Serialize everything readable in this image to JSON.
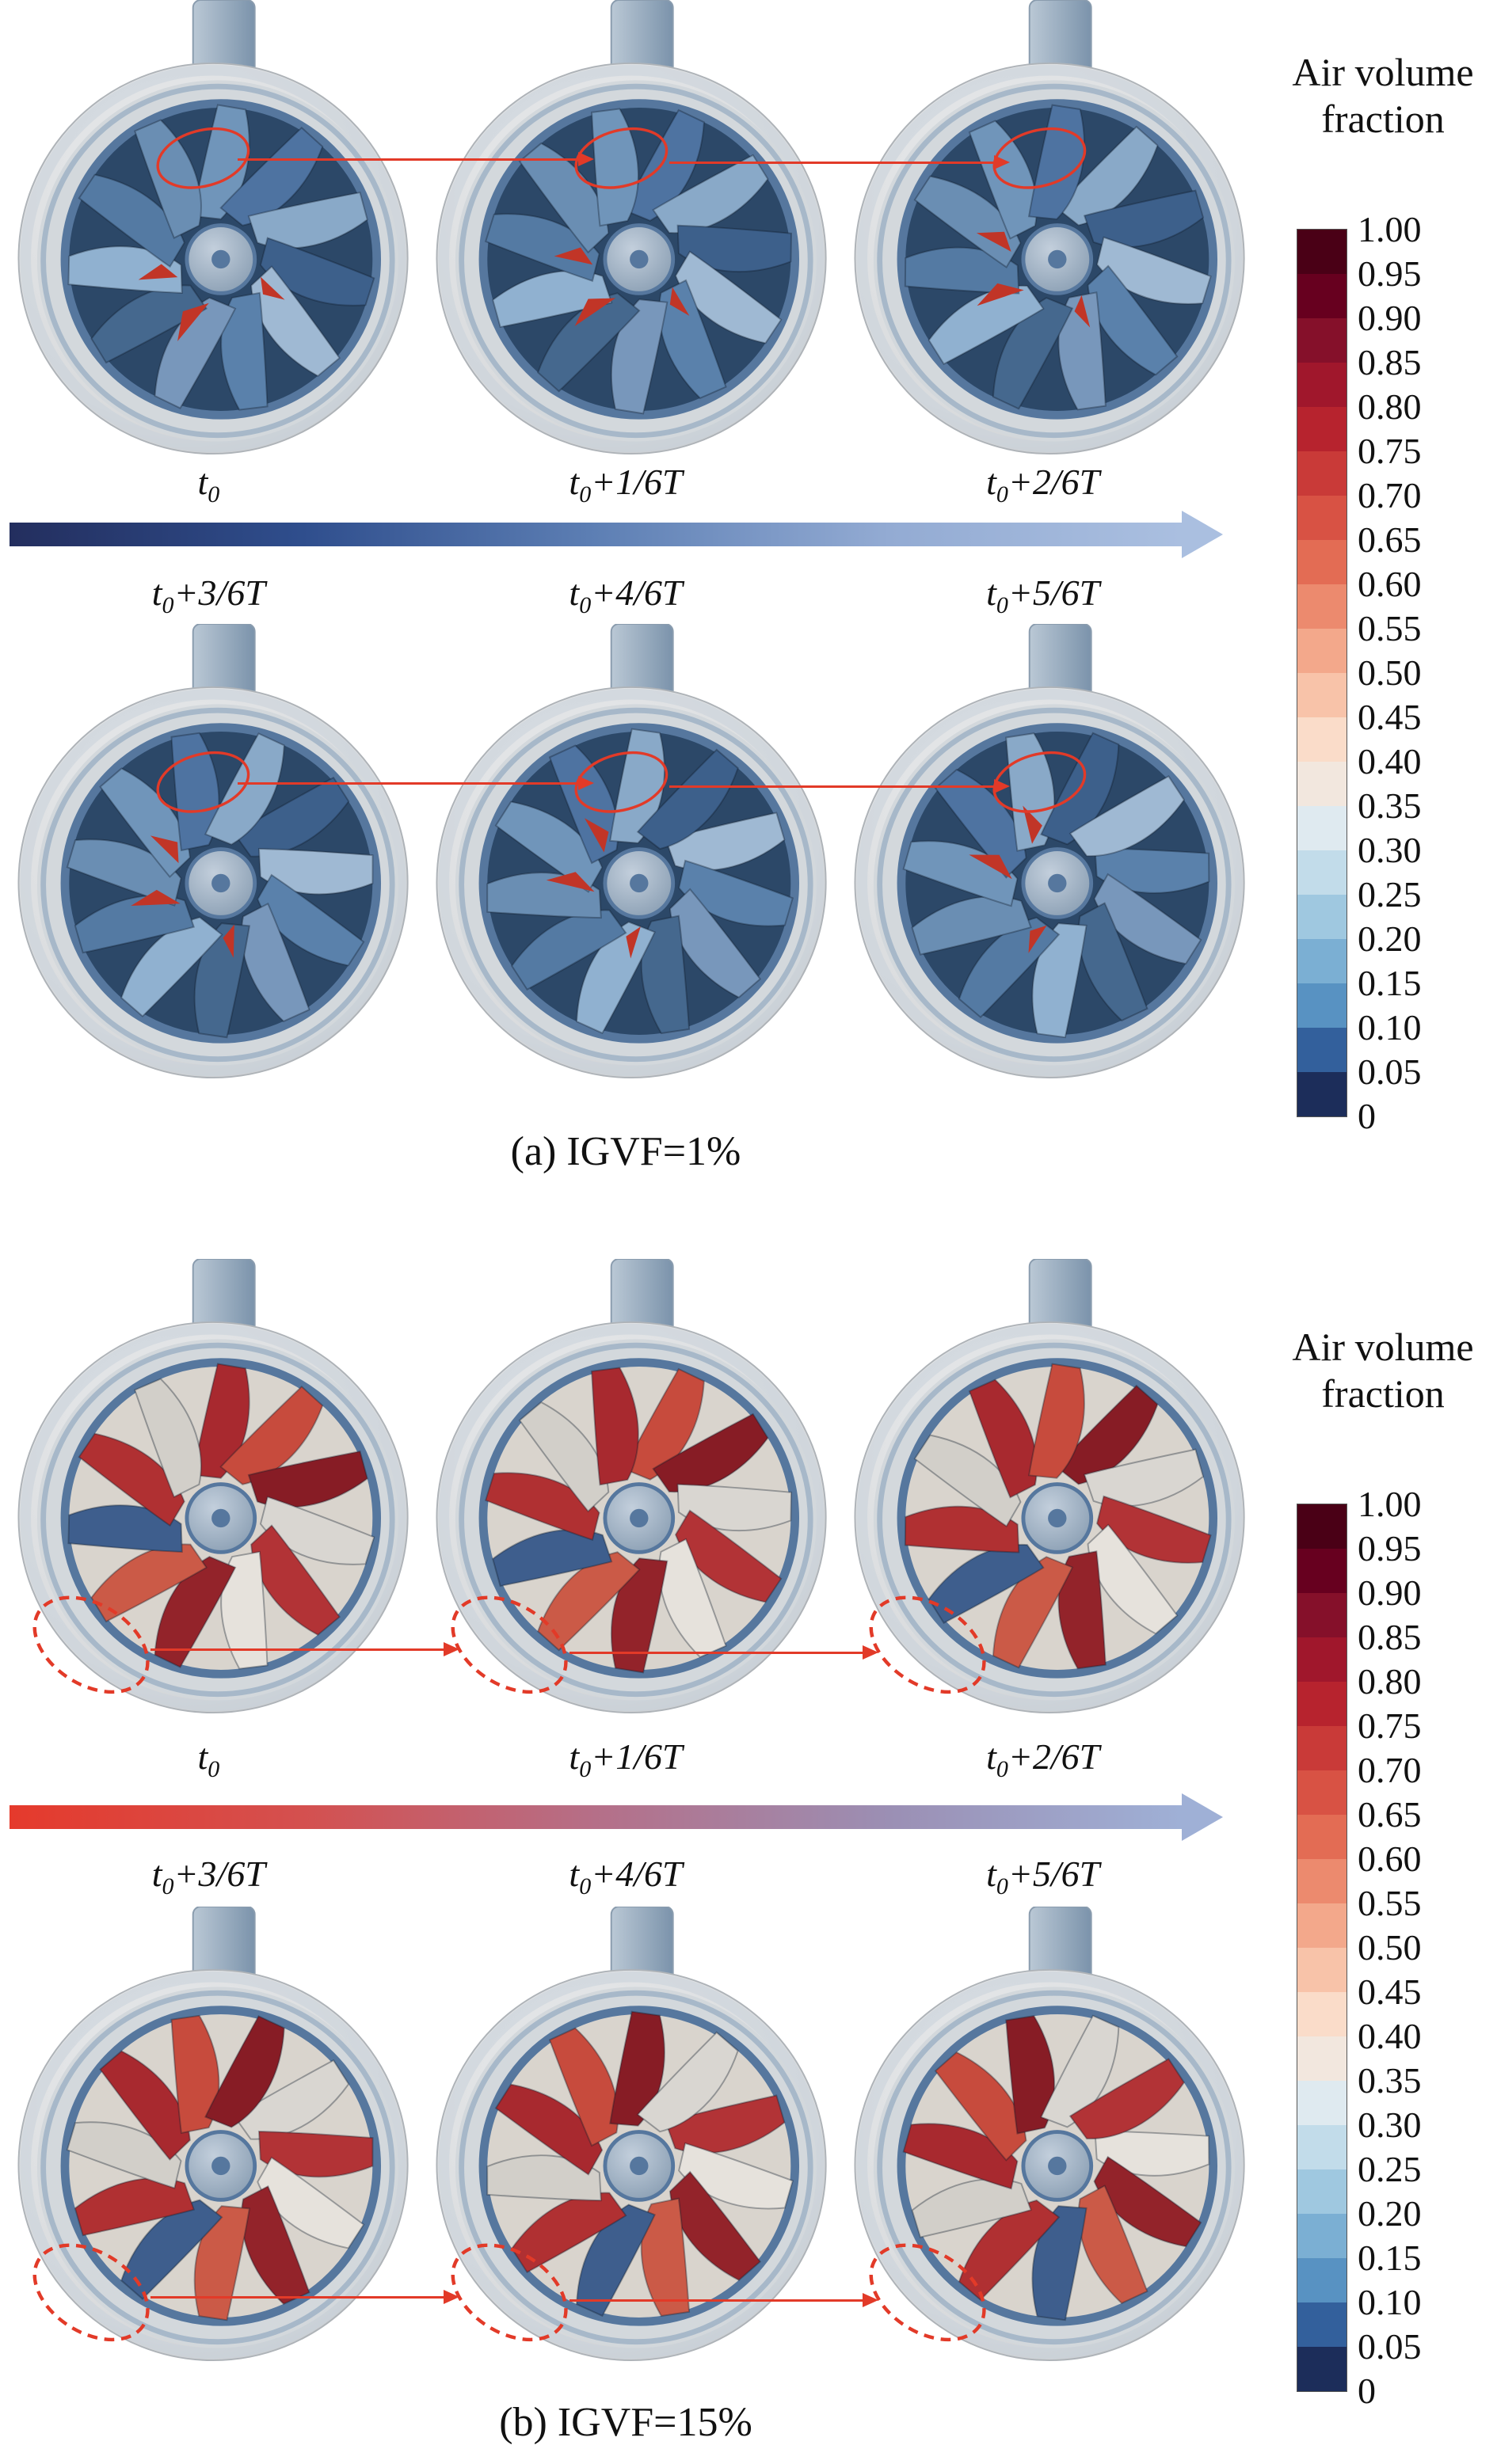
{
  "legend": {
    "title_line1": "Air volume",
    "title_line2": "fraction",
    "ticks": [
      "1.00",
      "0.95",
      "0.90",
      "0.85",
      "0.80",
      "0.75",
      "0.70",
      "0.65",
      "0.60",
      "0.55",
      "0.50",
      "0.45",
      "0.40",
      "0.35",
      "0.30",
      "0.25",
      "0.20",
      "0.15",
      "0.10",
      "0.05",
      "0"
    ],
    "band_colors": [
      "#4a0016",
      "#67001f",
      "#85102a",
      "#a0172c",
      "#b7232e",
      "#c93a38",
      "#d85244",
      "#e36c54",
      "#ec8a6e",
      "#f3a88b",
      "#f8c3a9",
      "#fadcc9",
      "#f2e7de",
      "#dfeaf0",
      "#c2dcea",
      "#9fc8e0",
      "#7bafd3",
      "#5892c2",
      "#33609c",
      "#1c2d5a"
    ]
  },
  "times": [
    {
      "main": "t",
      "sub": "0",
      "rest": ""
    },
    {
      "main": "t",
      "sub": "0",
      "rest": "+1/6T"
    },
    {
      "main": "t",
      "sub": "0",
      "rest": "+2/6T"
    },
    {
      "main": "t",
      "sub": "0",
      "rest": "+3/6T"
    },
    {
      "main": "t",
      "sub": "0",
      "rest": "+4/6T"
    },
    {
      "main": "t",
      "sub": "0",
      "rest": "+5/6T"
    }
  ],
  "panel_a": {
    "caption": "(a) IGVF=1%"
  },
  "panel_b": {
    "caption": "(b) IGVF=15%"
  },
  "figure": {
    "annotation_color": "#e23a28",
    "arrow_a": [
      "#232e5e",
      "#2f4e8d",
      "#5d7fb4",
      "#93abd3",
      "#aabfe0"
    ],
    "arrow_b": [
      "#e53a2c",
      "#d4504f",
      "#b56f88",
      "#9b8fb4",
      "#9fb0d6"
    ],
    "casing": {
      "outer": "#d9dbdd",
      "inner": "#d3d8dc",
      "rim": "#9fb3c6",
      "shroud": "#56779e",
      "pipe_light": "#bac8d5",
      "pipe_dark": "#7b93ab",
      "hub_light": "#c3cfdc",
      "hub_dark": "#8096ac"
    },
    "variant_a": {
      "disk": "#2c4868",
      "accent": "#c13527",
      "blades": [
        "#7095ba",
        "#4e73a1",
        "#89a9c8",
        "#3d608b",
        "#9fb9d3",
        "#5a81ab",
        "#7897bb",
        "#45688e",
        "#90b1d0",
        "#547aa3",
        "#6a8eb3"
      ]
    },
    "variant_b": {
      "disk": "#d9d4cd",
      "blades": [
        "#a8292f",
        "#c74b3d",
        "#871c25",
        "#d9d6d1",
        "#b23336",
        "#e6e2dc",
        "#93232a",
        "#cb5a47",
        "#3e5e8d",
        "#b03032",
        "#d2cfc9"
      ]
    }
  }
}
